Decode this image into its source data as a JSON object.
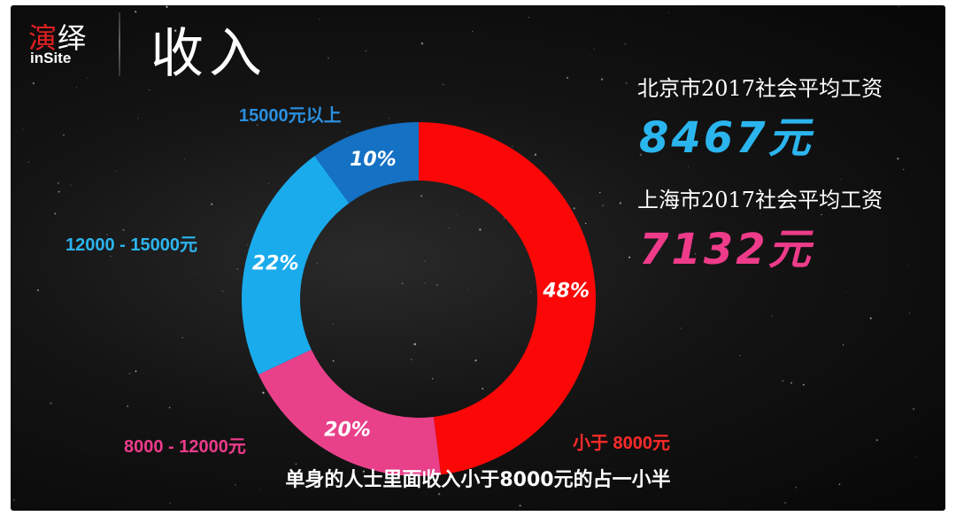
{
  "header": {
    "logo_cn_a": "演",
    "logo_cn_b": "绎",
    "logo_en": "inSite",
    "title": "收入"
  },
  "stats": [
    {
      "label": "北京市2017社会平均工资",
      "value": "8467元",
      "color": "#2bb5ee"
    },
    {
      "label": "上海市2017社会平均工资",
      "value": "7132元",
      "color": "#ee3b8a"
    }
  ],
  "caption": "单身的人士里面收入小于8000元的占一小半",
  "chart_data": {
    "type": "pie",
    "donut": true,
    "start": "12 o'clock, clockwise",
    "categories": [
      "小于 8000元",
      "8000 - 12000元",
      "12000 - 15000元",
      "15000元以上"
    ],
    "values": [
      48,
      20,
      22,
      10
    ],
    "value_labels": [
      "48%",
      "20%",
      "22%",
      "10%"
    ],
    "colors": [
      "#fb0707",
      "#e8418a",
      "#1aabed",
      "#1471c4"
    ],
    "label_colors": [
      "#ff2a2a",
      "#ee3b8a",
      "#2bb5ee",
      "#2a8fe0"
    ],
    "title": "",
    "legend": "labels placed beside slices"
  }
}
